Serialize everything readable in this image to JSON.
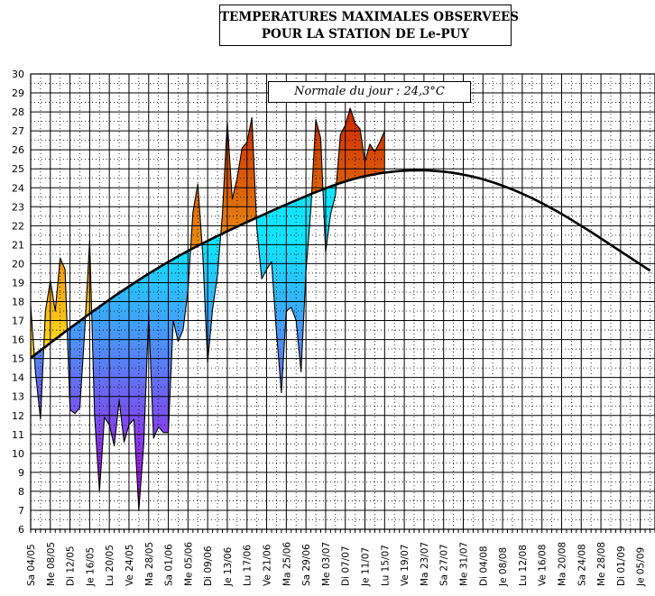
{
  "header": {
    "title_line1": "TEMPERATURES MAXIMALES OBSERVEES",
    "title_line2": "POUR LA STATION DE Le-PUY",
    "normal_label": "Normale du jour : 24,3°C"
  },
  "colors": {
    "above_low": "#ffd21a",
    "above_high": "#cc2a00",
    "below_high": "#11e4ff",
    "below_low": "#b300e6",
    "normal_line": "#000000",
    "grid": "#000000"
  },
  "chart_data": {
    "type": "area",
    "title": "TEMPERATURES MAXIMALES OBSERVEES POUR LA STATION DE Le-PUY",
    "ylabel": "",
    "xlabel": "",
    "ylim": [
      6,
      30
    ],
    "yticks": [
      6,
      7,
      8,
      9,
      10,
      11,
      12,
      13,
      14,
      15,
      16,
      17,
      18,
      19,
      20,
      21,
      22,
      23,
      24,
      25,
      26,
      27,
      28,
      29,
      30
    ],
    "start_date": "2024-05-04",
    "n_days": 127,
    "xtick_labels": [
      "Sa 04/05",
      "Me 08/05",
      "Di 12/05",
      "Je 16/05",
      "Lu 20/05",
      "Ve 24/05",
      "Ma 28/05",
      "Sa 01/06",
      "Me 05/06",
      "Di 09/06",
      "Je 13/06",
      "Lu 17/06",
      "Ve 21/06",
      "Ma 25/06",
      "Sa 29/06",
      "Me 03/07",
      "Di 07/07",
      "Je 11/07",
      "Lu 15/07",
      "Ve 19/07",
      "Ma 23/07",
      "Sa 27/07",
      "Me 31/07",
      "Di 04/08",
      "Je 08/08",
      "Lu 12/08",
      "Ve 16/08",
      "Ma 20/08",
      "Sa 24/08",
      "Me 28/08",
      "Di 01/09",
      "Je 05/09"
    ],
    "xtick_interval_days": 4,
    "series": [
      {
        "name": "Température maximale observée",
        "day_offset": 0,
        "values": [
          17.8,
          14.2,
          11.8,
          17.5,
          19.1,
          17.5,
          20.3,
          19.7,
          12.3,
          12.1,
          12.4,
          16.5,
          21.2,
          12.0,
          8.0,
          11.9,
          11.5,
          10.4,
          12.8,
          10.6,
          11.5,
          11.8,
          7.0,
          10.5,
          17.3,
          10.8,
          11.4,
          11.1,
          11.1,
          17.0,
          15.9,
          16.5,
          18.6,
          22.7,
          24.2,
          20.5,
          14.8,
          17.6,
          19.4,
          22.6,
          27.5,
          23.4,
          24.5,
          26.1,
          26.4,
          27.7,
          21.9,
          19.2,
          19.7,
          20.1,
          16.4,
          13.2,
          17.5,
          17.7,
          17.0,
          14.3,
          19.6,
          22.9,
          27.6,
          26.6,
          20.6,
          22.6,
          23.6,
          26.8,
          27.3,
          28.2,
          27.4,
          27.1,
          25.4,
          26.3,
          25.9,
          26.4,
          27.0
        ]
      },
      {
        "name": "Normale du jour",
        "day_offset": 0,
        "values": [
          15.03,
          15.23,
          15.43,
          15.62,
          15.82,
          16.02,
          16.21,
          16.41,
          16.6,
          16.79,
          16.98,
          17.17,
          17.36,
          17.55,
          17.73,
          17.92,
          18.1,
          18.28,
          18.46,
          18.63,
          18.8,
          18.97,
          19.14,
          19.31,
          19.47,
          19.63,
          19.79,
          19.94,
          20.09,
          20.24,
          20.39,
          20.53,
          20.67,
          20.81,
          20.94,
          21.07,
          21.2,
          21.33,
          21.46,
          21.58,
          21.71,
          21.83,
          21.95,
          22.07,
          22.19,
          22.31,
          22.43,
          22.54,
          22.66,
          22.78,
          22.89,
          23.01,
          23.12,
          23.23,
          23.34,
          23.45,
          23.56,
          23.67,
          23.77,
          23.87,
          23.97,
          24.07,
          24.16,
          24.25,
          24.33,
          24.41,
          24.48,
          24.55,
          24.61,
          24.66,
          24.71,
          24.76,
          24.8,
          24.83,
          24.86,
          24.88,
          24.9,
          24.91,
          24.92,
          24.92,
          24.92,
          24.91,
          24.89,
          24.87,
          24.85,
          24.82,
          24.78,
          24.74,
          24.69,
          24.64,
          24.58,
          24.52,
          24.45,
          24.37,
          24.29,
          24.2,
          24.11,
          24.01,
          23.91,
          23.8,
          23.69,
          23.57,
          23.45,
          23.32,
          23.19,
          23.05,
          22.91,
          22.77,
          22.62,
          22.47,
          22.31,
          22.15,
          21.99,
          21.83,
          21.67,
          21.5,
          21.33,
          21.16,
          20.99,
          20.82,
          20.65,
          20.48,
          20.31,
          20.14,
          19.97,
          19.8,
          19.63
        ]
      }
    ],
    "annotations": [
      "Normale du jour : 24,3°C"
    ]
  }
}
